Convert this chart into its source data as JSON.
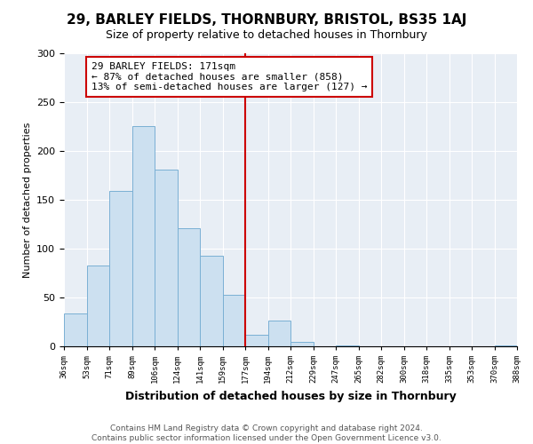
{
  "title": "29, BARLEY FIELDS, THORNBURY, BRISTOL, BS35 1AJ",
  "subtitle": "Size of property relative to detached houses in Thornbury",
  "xlabel": "Distribution of detached houses by size in Thornbury",
  "ylabel": "Number of detached properties",
  "bar_labels": [
    "36sqm",
    "53sqm",
    "71sqm",
    "89sqm",
    "106sqm",
    "124sqm",
    "141sqm",
    "159sqm",
    "177sqm",
    "194sqm",
    "212sqm",
    "229sqm",
    "247sqm",
    "265sqm",
    "282sqm",
    "300sqm",
    "318sqm",
    "335sqm",
    "353sqm",
    "370sqm",
    "388sqm"
  ],
  "bar_values": [
    34,
    83,
    159,
    225,
    181,
    121,
    93,
    53,
    12,
    26,
    5,
    0,
    1,
    0,
    0,
    0,
    0,
    0,
    0,
    1
  ],
  "bar_color": "#cce0f0",
  "bar_edge_color": "#7ab0d4",
  "highlight_line_color": "#cc0000",
  "annotation_text": "29 BARLEY FIELDS: 171sqm\n← 87% of detached houses are smaller (858)\n13% of semi-detached houses are larger (127) →",
  "annotation_box_color": "#cc0000",
  "ylim": [
    0,
    300
  ],
  "yticks": [
    0,
    50,
    100,
    150,
    200,
    250,
    300
  ],
  "background_color": "#e8eef5",
  "footer_text": "Contains HM Land Registry data © Crown copyright and database right 2024.\nContains public sector information licensed under the Open Government Licence v3.0.",
  "title_fontsize": 11,
  "subtitle_fontsize": 9,
  "annotation_fontsize": 8,
  "footer_fontsize": 6.5,
  "ylabel_fontsize": 8,
  "xlabel_fontsize": 9
}
